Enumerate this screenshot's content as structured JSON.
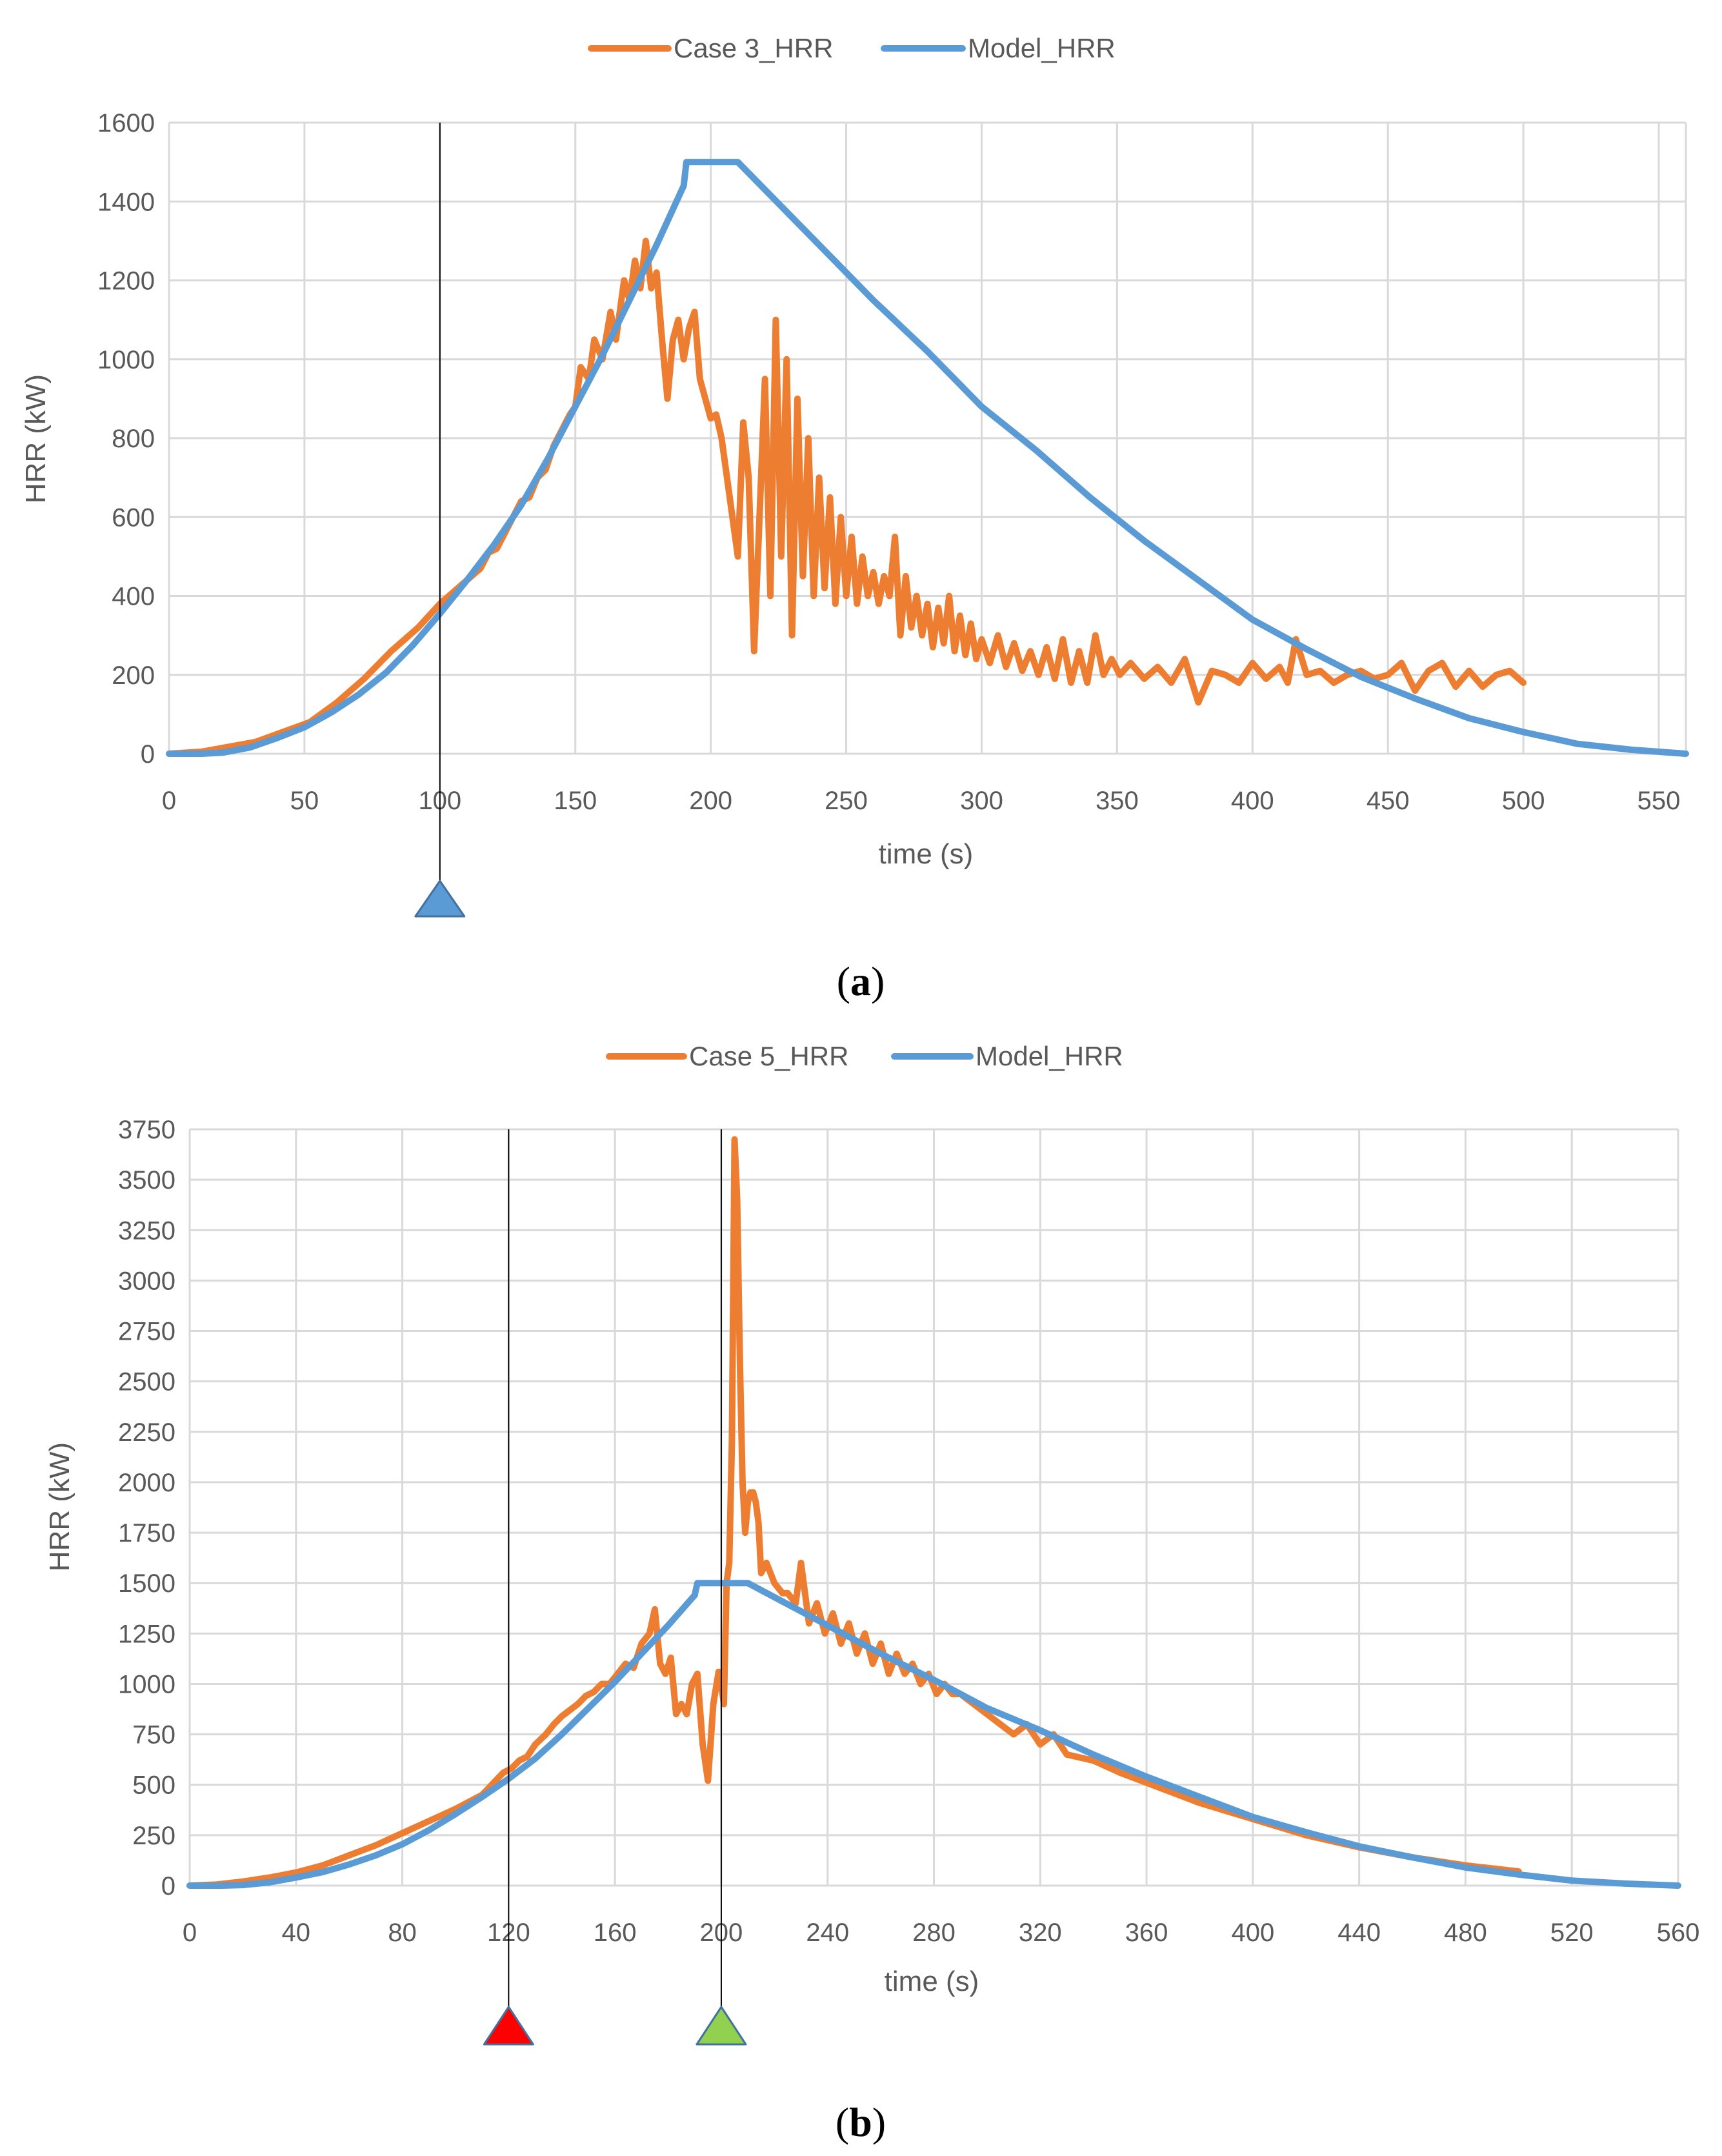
{
  "colors": {
    "case": "#ed7d31",
    "model": "#5b9bd5",
    "marker_blue": "#5b9bd5",
    "marker_red": "#ff0000",
    "marker_green": "#92d050",
    "text": "#595959",
    "grid": "#d9d9d9"
  },
  "chart_data": [
    {
      "type": "line",
      "panel": "a",
      "caption_open": "(",
      "caption_letter": "a",
      "caption_close": ")",
      "xlabel": "time (s)",
      "ylabel": "HRR (kW)",
      "xlim": [
        0,
        560
      ],
      "ylim": [
        0,
        1600
      ],
      "xticks": [
        0,
        50,
        100,
        150,
        200,
        250,
        300,
        350,
        400,
        450,
        500,
        550
      ],
      "yticks": [
        0,
        200,
        400,
        600,
        800,
        1000,
        1200,
        1400,
        1600
      ],
      "legend_position": "top-center",
      "markers": [
        {
          "x": 100,
          "color": "blue"
        }
      ],
      "series": [
        {
          "name": "Case 3_HRR",
          "color_key": "case",
          "x": [
            0,
            12,
            32,
            52,
            62,
            72,
            82,
            92,
            100,
            105,
            110,
            115,
            118,
            121,
            124,
            127,
            130,
            133,
            136,
            139,
            142,
            145,
            148,
            150,
            152,
            155,
            157,
            160,
            163,
            165,
            168,
            170,
            172,
            174,
            176,
            178,
            180,
            182,
            184,
            186,
            188,
            190,
            192,
            194,
            196,
            198,
            200,
            202,
            204,
            206,
            208,
            210,
            212,
            214,
            216,
            218,
            220,
            222,
            224,
            226,
            228,
            230,
            232,
            234,
            236,
            238,
            240,
            242,
            244,
            246,
            248,
            250,
            252,
            254,
            256,
            258,
            260,
            262,
            264,
            266,
            268,
            270,
            272,
            274,
            276,
            278,
            280,
            282,
            284,
            286,
            288,
            290,
            292,
            294,
            296,
            298,
            300,
            303,
            306,
            309,
            312,
            315,
            318,
            321,
            324,
            327,
            330,
            333,
            336,
            339,
            342,
            345,
            348,
            351,
            355,
            360,
            365,
            370,
            375,
            380,
            385,
            390,
            395,
            400,
            405,
            410,
            413,
            416,
            420,
            425,
            430,
            435,
            440,
            445,
            450,
            455,
            460,
            465,
            470,
            475,
            480,
            485,
            490,
            495,
            500
          ],
          "values": [
            0,
            5,
            30,
            80,
            130,
            190,
            260,
            320,
            380,
            410,
            440,
            470,
            510,
            520,
            560,
            600,
            640,
            650,
            700,
            720,
            780,
            820,
            860,
            880,
            980,
            950,
            1050,
            1000,
            1120,
            1050,
            1200,
            1150,
            1250,
            1180,
            1300,
            1180,
            1220,
            1050,
            900,
            1050,
            1100,
            1000,
            1080,
            1120,
            950,
            900,
            850,
            860,
            800,
            700,
            600,
            500,
            840,
            700,
            260,
            600,
            950,
            400,
            1100,
            500,
            1000,
            300,
            900,
            450,
            800,
            400,
            700,
            420,
            650,
            380,
            600,
            400,
            550,
            380,
            500,
            400,
            460,
            380,
            450,
            400,
            550,
            300,
            450,
            320,
            400,
            300,
            380,
            270,
            370,
            280,
            400,
            260,
            350,
            250,
            330,
            240,
            290,
            230,
            300,
            220,
            280,
            210,
            260,
            200,
            270,
            190,
            290,
            180,
            260,
            180,
            300,
            200,
            240,
            200,
            230,
            190,
            220,
            180,
            240,
            130,
            210,
            200,
            180,
            230,
            190,
            220,
            180,
            290,
            200,
            210,
            180,
            200,
            210,
            190,
            200,
            230,
            160,
            210,
            230,
            170,
            210,
            170,
            200,
            210,
            180
          ]
        },
        {
          "name": "Model_HRR",
          "color_key": "model",
          "x": [
            0,
            12,
            20,
            30,
            40,
            50,
            60,
            70,
            80,
            90,
            100,
            110,
            120,
            130,
            140,
            150,
            160,
            170,
            180,
            190,
            191,
            200,
            210,
            220,
            240,
            260,
            280,
            300,
            320,
            340,
            360,
            380,
            400,
            420,
            440,
            460,
            480,
            500,
            520,
            540,
            560
          ],
          "values": [
            0,
            0,
            3,
            16,
            40,
            67,
            105,
            150,
            205,
            275,
            355,
            440,
            530,
            630,
            750,
            880,
            1010,
            1150,
            1290,
            1440,
            1500,
            1500,
            1500,
            1430,
            1290,
            1150,
            1020,
            880,
            770,
            650,
            540,
            440,
            340,
            265,
            195,
            140,
            90,
            55,
            25,
            10,
            0
          ]
        }
      ]
    },
    {
      "type": "line",
      "panel": "b",
      "caption_open": "(",
      "caption_letter": "b",
      "caption_close": ")",
      "xlabel": "time (s)",
      "ylabel": "HRR (kW)",
      "xlim": [
        0,
        560
      ],
      "ylim": [
        0,
        3750
      ],
      "xticks": [
        0,
        40,
        80,
        120,
        160,
        200,
        240,
        280,
        320,
        360,
        400,
        440,
        480,
        520,
        560
      ],
      "yticks": [
        0,
        250,
        500,
        750,
        1000,
        1250,
        1500,
        1750,
        2000,
        2250,
        2500,
        2750,
        3000,
        3250,
        3500,
        3750
      ],
      "legend_position": "top-center",
      "markers": [
        {
          "x": 120,
          "color": "red"
        },
        {
          "x": 200,
          "color": "green"
        }
      ],
      "series": [
        {
          "name": "Case 5_HRR",
          "color_key": "case",
          "x": [
            0,
            10,
            20,
            30,
            40,
            50,
            60,
            70,
            80,
            90,
            100,
            110,
            118,
            121,
            124,
            127,
            130,
            134,
            137,
            140,
            143,
            146,
            149,
            152,
            155,
            158,
            161,
            164,
            167,
            170,
            173,
            175,
            177,
            179,
            181,
            183,
            185,
            187,
            189,
            191,
            193,
            195,
            197,
            199,
            200,
            201,
            202,
            203,
            204,
            205,
            206,
            207,
            208,
            209,
            210,
            211,
            212,
            213,
            214,
            215,
            217,
            220,
            223,
            225,
            228,
            230,
            233,
            236,
            239,
            242,
            245,
            248,
            251,
            254,
            257,
            260,
            263,
            266,
            269,
            272,
            275,
            278,
            281,
            284,
            287,
            290,
            295,
            300,
            305,
            310,
            315,
            320,
            325,
            330,
            340,
            350,
            360,
            370,
            380,
            390,
            400,
            410,
            420,
            430,
            440,
            450,
            460,
            470,
            480,
            490,
            500
          ],
          "values": [
            0,
            5,
            20,
            40,
            65,
            100,
            150,
            200,
            260,
            320,
            380,
            450,
            560,
            580,
            620,
            640,
            700,
            750,
            800,
            840,
            870,
            900,
            940,
            960,
            1000,
            1000,
            1050,
            1100,
            1080,
            1200,
            1250,
            1370,
            1100,
            1050,
            1130,
            850,
            900,
            850,
            1000,
            1050,
            700,
            520,
            900,
            1060,
            1000,
            900,
            1500,
            1600,
            2200,
            3700,
            3400,
            2600,
            2000,
            1750,
            1900,
            1950,
            1950,
            1900,
            1800,
            1550,
            1600,
            1500,
            1450,
            1450,
            1400,
            1600,
            1300,
            1400,
            1250,
            1350,
            1200,
            1300,
            1150,
            1250,
            1100,
            1200,
            1050,
            1150,
            1050,
            1100,
            1000,
            1050,
            950,
            1000,
            950,
            950,
            900,
            850,
            800,
            750,
            800,
            700,
            750,
            650,
            620,
            560,
            510,
            460,
            410,
            370,
            330,
            290,
            250,
            220,
            190,
            165,
            140,
            120,
            100,
            85,
            70
          ]
        },
        {
          "name": "Model_HRR",
          "color_key": "model",
          "x": [
            0,
            12,
            20,
            30,
            40,
            50,
            60,
            70,
            80,
            90,
            100,
            110,
            120,
            130,
            140,
            150,
            160,
            170,
            180,
            190,
            191,
            200,
            210,
            220,
            240,
            260,
            280,
            300,
            320,
            340,
            360,
            380,
            400,
            420,
            440,
            460,
            480,
            500,
            520,
            540,
            560
          ],
          "values": [
            0,
            0,
            3,
            16,
            40,
            67,
            105,
            150,
            205,
            275,
            355,
            440,
            530,
            630,
            750,
            880,
            1010,
            1150,
            1290,
            1440,
            1500,
            1500,
            1500,
            1430,
            1290,
            1150,
            1020,
            880,
            770,
            650,
            540,
            440,
            340,
            265,
            195,
            140,
            90,
            55,
            25,
            10,
            0
          ]
        }
      ]
    }
  ]
}
